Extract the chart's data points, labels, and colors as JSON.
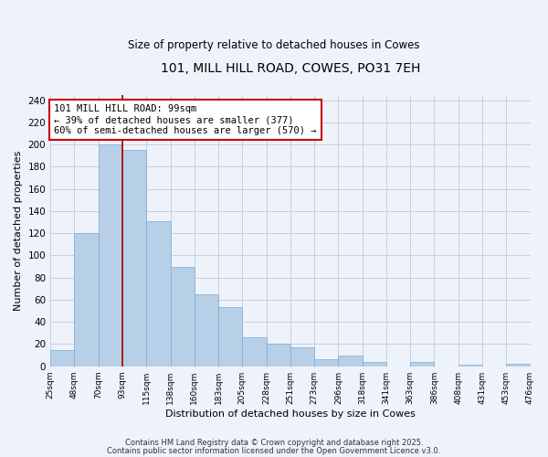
{
  "title": "101, MILL HILL ROAD, COWES, PO31 7EH",
  "subtitle": "Size of property relative to detached houses in Cowes",
  "xlabel": "Distribution of detached houses by size in Cowes",
  "ylabel": "Number of detached properties",
  "bar_values": [
    15,
    120,
    200,
    195,
    131,
    90,
    65,
    53,
    26,
    20,
    17,
    6,
    10,
    4,
    0,
    4,
    0,
    1,
    0,
    2
  ],
  "bin_labels": [
    "25sqm",
    "48sqm",
    "70sqm",
    "93sqm",
    "115sqm",
    "138sqm",
    "160sqm",
    "183sqm",
    "205sqm",
    "228sqm",
    "251sqm",
    "273sqm",
    "296sqm",
    "318sqm",
    "341sqm",
    "363sqm",
    "386sqm",
    "408sqm",
    "431sqm",
    "453sqm",
    "476sqm"
  ],
  "bar_color": "#b8cfe8",
  "bar_edge_color": "#7aadd4",
  "ylim": [
    0,
    245
  ],
  "yticks": [
    0,
    20,
    40,
    60,
    80,
    100,
    120,
    140,
    160,
    180,
    200,
    220,
    240
  ],
  "vline_x_index": 3,
  "vline_color": "#aa0000",
  "annotation_text": "101 MILL HILL ROAD: 99sqm\n← 39% of detached houses are smaller (377)\n60% of semi-detached houses are larger (570) →",
  "annotation_box_color": "#ffffff",
  "annotation_box_edge": "#cc0000",
  "footer_line1": "Contains HM Land Registry data © Crown copyright and database right 2025.",
  "footer_line2": "Contains public sector information licensed under the Open Government Licence v3.0.",
  "background_color": "#eef2fa",
  "grid_color": "#c5cfe0"
}
